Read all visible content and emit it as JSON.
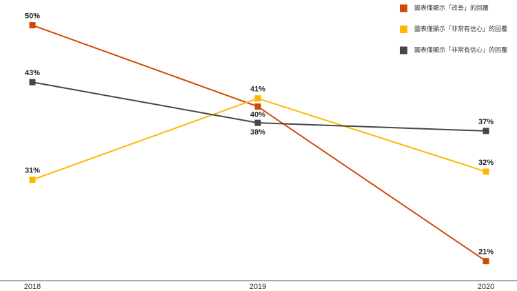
{
  "chart_data": {
    "type": "line",
    "categories": [
      "2018",
      "2019",
      "2020"
    ],
    "series": [
      {
        "name": "圖表僅顯示「改善」的回覆",
        "color": "#d04a02",
        "values": [
          50,
          40,
          21
        ],
        "value_labels": [
          "50%",
          "40%",
          "21%"
        ]
      },
      {
        "name": "圖表僅顯示「非常有信心」的回覆",
        "color": "#ffb600",
        "values": [
          31,
          41,
          32
        ],
        "value_labels": [
          "31%",
          "41%",
          "32%"
        ]
      },
      {
        "name": "圖表僅顯示「非常有信心」的回覆",
        "color": "#464646",
        "values": [
          43,
          38,
          37
        ],
        "value_labels": [
          "43%",
          "38%",
          "37%"
        ]
      }
    ],
    "ylim": [
      18.6,
      53.1
    ]
  }
}
